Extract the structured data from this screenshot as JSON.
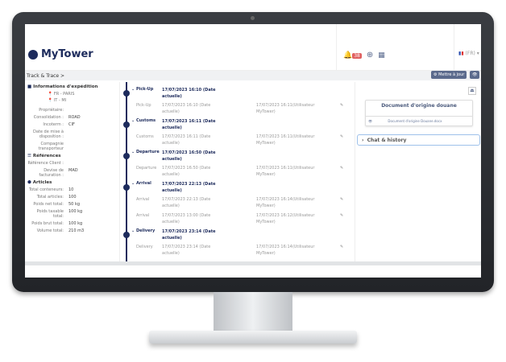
{
  "header": {
    "logo": "MyTower",
    "notif_count": "38",
    "lang": "(FR)"
  },
  "bar": {
    "breadcrumb": "Track & Trace >",
    "update_btn": "Mettre à jour"
  },
  "shipment": {
    "title": "Informations d'expédition",
    "origin": "FR - PARIS",
    "destination": "IT - MI",
    "fields": [
      {
        "k": "Propriétaire:",
        "v": ""
      },
      {
        "k": "Consolidation :",
        "v": "ROAD"
      },
      {
        "k": "Incoterm :",
        "v": "CIF"
      },
      {
        "k": "Date de mise à disposition :",
        "v": ""
      },
      {
        "k": "Compagnie transporteur",
        "v": ""
      }
    ]
  },
  "references": {
    "title": "Références",
    "fields": [
      {
        "k": "Référence Client :",
        "v": ""
      },
      {
        "k": "Devise de facturation :",
        "v": "MAD"
      }
    ]
  },
  "articles": {
    "title": "Articles",
    "fields": [
      {
        "k": "Total conteneurs:",
        "v": "10"
      },
      {
        "k": "Total articles:",
        "v": "100"
      },
      {
        "k": "Poids net total:",
        "v": "50 kg"
      },
      {
        "k": "Poids taxable total:",
        "v": "100 kg"
      },
      {
        "k": "Poids brut total:",
        "v": "100 kg"
      },
      {
        "k": "Volume total:",
        "v": "210 m3"
      }
    ]
  },
  "events": [
    {
      "name": "Pick-Up",
      "date": "17/07/2023 16:10 (Date actuelle)",
      "subs": [
        {
          "name": "Pick-Up",
          "date": "17/07/2023 16:10 (Date actuelle)",
          "user": "17/07/2023 16:11(Utilisateur MyTower)"
        }
      ]
    },
    {
      "name": "Customs",
      "date": "17/07/2023 16:11 (Date actuelle)",
      "subs": [
        {
          "name": "Customs",
          "date": "17/07/2023 16:11 (Date actuelle)",
          "user": "17/07/2023 16:11(Utilisateur MyTower)"
        }
      ]
    },
    {
      "name": "Departure",
      "date": "17/07/2023 16:50 (Date actuelle)",
      "subs": [
        {
          "name": "Departure",
          "date": "17/07/2023 16:50 (Date actuelle)",
          "user": "17/07/2023 16:11(Utilisateur MyTower)"
        }
      ]
    },
    {
      "name": "Arrival",
      "date": "17/07/2023 22:13 (Date actuelle)",
      "subs": [
        {
          "name": "Arrival",
          "date": "17/07/2023 22:13 (Date actuelle)",
          "user": "17/07/2023 16:14(Utilisateur MyTower)"
        },
        {
          "name": "Arrival",
          "date": "17/07/2023 13:00 (Date actuelle)",
          "user": "17/07/2023 16:12(Utilisateur MyTower)"
        }
      ]
    },
    {
      "name": "Delivery",
      "date": "17/07/2023 23:14 (Date actuelle)",
      "subs": [
        {
          "name": "Delivery",
          "date": "17/07/2023 23:14 (Date actuelle)",
          "user": "17/07/2023 16:14(Utilisateur MyTower)"
        }
      ]
    }
  ],
  "document": {
    "title": "Document d'origine douane",
    "file": "Document d'origine Douane.docx"
  },
  "chat": {
    "label": "Chat & history"
  }
}
